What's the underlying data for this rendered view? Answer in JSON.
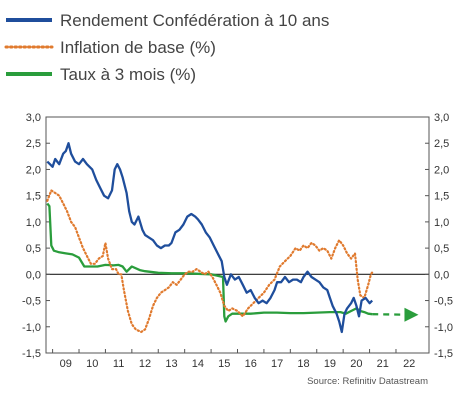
{
  "chart_data": {
    "type": "line",
    "source": "Source: Refinitiv Datastream",
    "xlim": [
      2008.25,
      2022.75
    ],
    "ylim": [
      -1.5,
      3.0
    ],
    "x_ticks": [
      {
        "label": "09",
        "x": 2009.0
      },
      {
        "label": "10",
        "x": 2010.0
      },
      {
        "label": "11",
        "x": 2011.0
      },
      {
        "label": "12",
        "x": 2012.0
      },
      {
        "label": "13",
        "x": 2013.0
      },
      {
        "label": "14",
        "x": 2014.0
      },
      {
        "label": "15",
        "x": 2015.0
      },
      {
        "label": "16",
        "x": 2016.0
      },
      {
        "label": "17",
        "x": 2017.0
      },
      {
        "label": "18",
        "x": 2018.0
      },
      {
        "label": "19",
        "x": 2019.0
      },
      {
        "label": "20",
        "x": 2020.0
      },
      {
        "label": "21",
        "x": 2021.0
      },
      {
        "label": "22",
        "x": 2022.0
      }
    ],
    "y_ticks": [
      {
        "label": "3,0",
        "v": 3.0
      },
      {
        "label": "2,5",
        "v": 2.5
      },
      {
        "label": "2,0",
        "v": 2.0
      },
      {
        "label": "1,5",
        "v": 1.5
      },
      {
        "label": "1,0",
        "v": 1.0
      },
      {
        "label": "0,5",
        "v": 0.5
      },
      {
        "label": "0,0",
        "v": 0.0
      },
      {
        "label": "-0,5",
        "v": -0.5
      },
      {
        "label": "-1,0",
        "v": -1.0
      },
      {
        "label": "-1,5",
        "v": -1.5
      }
    ],
    "zero_line": true,
    "legend_placement": "top",
    "series": [
      {
        "name": "Rendement Confédération à 10 ans",
        "color": "#1f4e9c",
        "style": "solid",
        "points": [
          [
            2008.3,
            2.15
          ],
          [
            2008.5,
            2.05
          ],
          [
            2008.6,
            2.2
          ],
          [
            2008.75,
            2.1
          ],
          [
            2008.9,
            2.3
          ],
          [
            2009.0,
            2.35
          ],
          [
            2009.1,
            2.5
          ],
          [
            2009.2,
            2.3
          ],
          [
            2009.35,
            2.15
          ],
          [
            2009.5,
            2.1
          ],
          [
            2009.65,
            2.2
          ],
          [
            2009.8,
            2.1
          ],
          [
            2010.0,
            2.0
          ],
          [
            2010.15,
            1.8
          ],
          [
            2010.3,
            1.65
          ],
          [
            2010.45,
            1.5
          ],
          [
            2010.6,
            1.45
          ],
          [
            2010.75,
            1.6
          ],
          [
            2010.85,
            2.0
          ],
          [
            2010.95,
            2.1
          ],
          [
            2011.05,
            2.0
          ],
          [
            2011.15,
            1.85
          ],
          [
            2011.3,
            1.55
          ],
          [
            2011.4,
            1.2
          ],
          [
            2011.5,
            1.0
          ],
          [
            2011.6,
            0.95
          ],
          [
            2011.75,
            1.1
          ],
          [
            2011.9,
            0.85
          ],
          [
            2012.0,
            0.75
          ],
          [
            2012.15,
            0.7
          ],
          [
            2012.3,
            0.65
          ],
          [
            2012.45,
            0.55
          ],
          [
            2012.6,
            0.5
          ],
          [
            2012.75,
            0.55
          ],
          [
            2012.9,
            0.55
          ],
          [
            2013.0,
            0.6
          ],
          [
            2013.15,
            0.8
          ],
          [
            2013.3,
            0.85
          ],
          [
            2013.45,
            0.95
          ],
          [
            2013.6,
            1.1
          ],
          [
            2013.75,
            1.15
          ],
          [
            2013.9,
            1.1
          ],
          [
            2014.0,
            1.05
          ],
          [
            2014.15,
            0.95
          ],
          [
            2014.3,
            0.8
          ],
          [
            2014.45,
            0.7
          ],
          [
            2014.6,
            0.55
          ],
          [
            2014.75,
            0.4
          ],
          [
            2014.9,
            0.25
          ],
          [
            2015.0,
            -0.05
          ],
          [
            2015.1,
            -0.2
          ],
          [
            2015.25,
            0.0
          ],
          [
            2015.4,
            -0.1
          ],
          [
            2015.55,
            -0.05
          ],
          [
            2015.7,
            -0.2
          ],
          [
            2015.85,
            -0.35
          ],
          [
            2016.0,
            -0.3
          ],
          [
            2016.15,
            -0.45
          ],
          [
            2016.3,
            -0.55
          ],
          [
            2016.45,
            -0.5
          ],
          [
            2016.6,
            -0.55
          ],
          [
            2016.75,
            -0.45
          ],
          [
            2016.9,
            -0.3
          ],
          [
            2017.0,
            -0.15
          ],
          [
            2017.15,
            -0.15
          ],
          [
            2017.3,
            -0.05
          ],
          [
            2017.45,
            -0.15
          ],
          [
            2017.6,
            -0.1
          ],
          [
            2017.75,
            -0.1
          ],
          [
            2017.9,
            -0.15
          ],
          [
            2018.0,
            -0.05
          ],
          [
            2018.15,
            0.05
          ],
          [
            2018.3,
            -0.05
          ],
          [
            2018.45,
            -0.1
          ],
          [
            2018.6,
            -0.15
          ],
          [
            2018.75,
            -0.25
          ],
          [
            2018.9,
            -0.3
          ],
          [
            2019.0,
            -0.45
          ],
          [
            2019.1,
            -0.6
          ],
          [
            2019.25,
            -0.75
          ],
          [
            2019.35,
            -0.9
          ],
          [
            2019.45,
            -1.1
          ],
          [
            2019.55,
            -0.75
          ],
          [
            2019.65,
            -0.65
          ],
          [
            2019.8,
            -0.55
          ],
          [
            2019.9,
            -0.45
          ],
          [
            2020.0,
            -0.6
          ],
          [
            2020.1,
            -0.8
          ],
          [
            2020.2,
            -0.5
          ],
          [
            2020.35,
            -0.45
          ],
          [
            2020.5,
            -0.55
          ],
          [
            2020.6,
            -0.5
          ]
        ]
      },
      {
        "name": "Inflation de base (%)",
        "color": "#e07a2e",
        "style": "dotted",
        "points": [
          [
            2008.3,
            1.4
          ],
          [
            2008.45,
            1.6
          ],
          [
            2008.6,
            1.55
          ],
          [
            2008.75,
            1.5
          ],
          [
            2008.9,
            1.35
          ],
          [
            2009.05,
            1.2
          ],
          [
            2009.2,
            1.0
          ],
          [
            2009.35,
            0.9
          ],
          [
            2009.5,
            0.7
          ],
          [
            2009.65,
            0.5
          ],
          [
            2009.8,
            0.35
          ],
          [
            2009.95,
            0.2
          ],
          [
            2010.1,
            0.2
          ],
          [
            2010.25,
            0.3
          ],
          [
            2010.4,
            0.35
          ],
          [
            2010.5,
            0.6
          ],
          [
            2010.6,
            0.3
          ],
          [
            2010.75,
            0.1
          ],
          [
            2010.9,
            0.1
          ],
          [
            2011.0,
            0.0
          ],
          [
            2011.1,
            0.0
          ],
          [
            2011.2,
            -0.3
          ],
          [
            2011.35,
            -0.7
          ],
          [
            2011.5,
            -0.95
          ],
          [
            2011.65,
            -1.05
          ],
          [
            2011.85,
            -1.1
          ],
          [
            2012.0,
            -1.05
          ],
          [
            2012.15,
            -0.85
          ],
          [
            2012.3,
            -0.6
          ],
          [
            2012.45,
            -0.45
          ],
          [
            2012.6,
            -0.35
          ],
          [
            2012.75,
            -0.3
          ],
          [
            2012.9,
            -0.25
          ],
          [
            2013.05,
            -0.15
          ],
          [
            2013.2,
            -0.2
          ],
          [
            2013.35,
            -0.1
          ],
          [
            2013.5,
            0.0
          ],
          [
            2013.65,
            0.05
          ],
          [
            2013.8,
            0.05
          ],
          [
            2013.95,
            0.1
          ],
          [
            2014.1,
            0.05
          ],
          [
            2014.25,
            0.0
          ],
          [
            2014.4,
            0.05
          ],
          [
            2014.55,
            -0.05
          ],
          [
            2014.7,
            -0.2
          ],
          [
            2014.85,
            -0.35
          ],
          [
            2015.0,
            -0.6
          ],
          [
            2015.15,
            -0.7
          ],
          [
            2015.3,
            -0.65
          ],
          [
            2015.5,
            -0.7
          ],
          [
            2015.7,
            -0.8
          ],
          [
            2015.9,
            -0.65
          ],
          [
            2016.1,
            -0.55
          ],
          [
            2016.3,
            -0.45
          ],
          [
            2016.5,
            -0.35
          ],
          [
            2016.7,
            -0.2
          ],
          [
            2016.9,
            -0.1
          ],
          [
            2017.1,
            0.15
          ],
          [
            2017.3,
            0.25
          ],
          [
            2017.5,
            0.35
          ],
          [
            2017.7,
            0.5
          ],
          [
            2017.85,
            0.45
          ],
          [
            2018.0,
            0.55
          ],
          [
            2018.15,
            0.5
          ],
          [
            2018.3,
            0.6
          ],
          [
            2018.45,
            0.55
          ],
          [
            2018.6,
            0.45
          ],
          [
            2018.75,
            0.5
          ],
          [
            2018.9,
            0.45
          ],
          [
            2019.05,
            0.3
          ],
          [
            2019.2,
            0.5
          ],
          [
            2019.35,
            0.65
          ],
          [
            2019.5,
            0.55
          ],
          [
            2019.65,
            0.4
          ],
          [
            2019.8,
            0.3
          ],
          [
            2019.95,
            0.4
          ],
          [
            2020.05,
            -0.1
          ],
          [
            2020.15,
            -0.4
          ],
          [
            2020.3,
            -0.45
          ],
          [
            2020.45,
            -0.2
          ],
          [
            2020.55,
            0.0
          ],
          [
            2020.62,
            0.05
          ]
        ]
      },
      {
        "name": "Taux à 3 mois (%)",
        "color": "#2a9d3c",
        "style": "solid",
        "points": [
          [
            2008.3,
            1.35
          ],
          [
            2008.38,
            1.3
          ],
          [
            2008.45,
            0.55
          ],
          [
            2008.55,
            0.45
          ],
          [
            2008.75,
            0.42
          ],
          [
            2009.0,
            0.4
          ],
          [
            2009.25,
            0.38
          ],
          [
            2009.5,
            0.32
          ],
          [
            2009.7,
            0.15
          ],
          [
            2009.85,
            0.15
          ],
          [
            2010.2,
            0.15
          ],
          [
            2010.5,
            0.18
          ],
          [
            2010.8,
            0.17
          ],
          [
            2011.0,
            0.18
          ],
          [
            2011.15,
            0.15
          ],
          [
            2011.3,
            0.05
          ],
          [
            2011.5,
            0.15
          ],
          [
            2011.8,
            0.08
          ],
          [
            2012.0,
            0.06
          ],
          [
            2012.5,
            0.03
          ],
          [
            2013.0,
            0.02
          ],
          [
            2013.5,
            0.02
          ],
          [
            2014.0,
            0.01
          ],
          [
            2014.5,
            0.0
          ],
          [
            2014.95,
            -0.05
          ],
          [
            2015.0,
            -0.8
          ],
          [
            2015.05,
            -0.9
          ],
          [
            2015.15,
            -0.8
          ],
          [
            2015.3,
            -0.75
          ],
          [
            2015.6,
            -0.75
          ],
          [
            2016.0,
            -0.75
          ],
          [
            2016.5,
            -0.73
          ],
          [
            2017.0,
            -0.73
          ],
          [
            2017.5,
            -0.74
          ],
          [
            2018.0,
            -0.74
          ],
          [
            2018.5,
            -0.73
          ],
          [
            2019.0,
            -0.72
          ],
          [
            2019.4,
            -0.72
          ],
          [
            2019.6,
            -0.75
          ],
          [
            2019.8,
            -0.7
          ],
          [
            2020.0,
            -0.65
          ],
          [
            2020.15,
            -0.7
          ],
          [
            2020.3,
            -0.72
          ],
          [
            2020.45,
            -0.75
          ],
          [
            2020.6,
            -0.76
          ]
        ],
        "forecast": [
          [
            2020.6,
            -0.76
          ],
          [
            2022.2,
            -0.77
          ]
        ]
      }
    ]
  }
}
